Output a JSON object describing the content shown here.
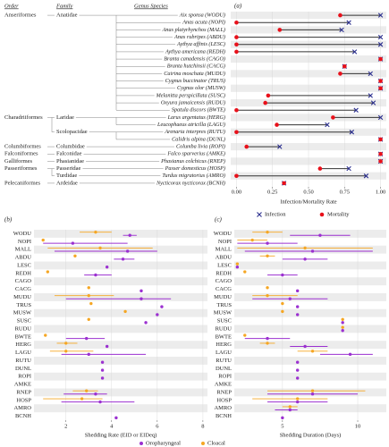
{
  "chart_data": [
    {
      "type": "dumbbell",
      "panel_label": "(a)",
      "headers": [
        "Order",
        "Family",
        "Genus Species"
      ],
      "categories": [
        "Aix sponsa (WODU)",
        "Anas acuta (NOPI)",
        "Anas platyrhynchos (MALL)",
        "Anas rubripes (ABDU)",
        "Aythya affinis (LESC)",
        "Aythya americana (REDH)",
        "Branta canadensis (CAGO)",
        "Branta hutchinsii (CACG)",
        "Cairina moschata (MUDU)",
        "Cygnus buccinator (TRUS)",
        "Cygnus olor (MUSW)",
        "Melanitta perspicillata (SUSC)",
        "Oxyura jamaicensis (RUDU)",
        "Spatula discors (BWTE)",
        "Larus argentatus (HERG)",
        "Leucophaeus atricilla (LAGU)",
        "Arenaria interpres (RUTU)",
        "Calidris alpina (DUNL)",
        "Columba livia (ROPI)",
        "Falco sparverius (AMKE)",
        "Phasianus colchicus (RNEP)",
        "Passer domesticus (HOSP)",
        "Turdus migratorius (AMRO)",
        "Nycticorax nycticorax (BCNH)"
      ],
      "orders": [
        "Anseriformes",
        null,
        null,
        null,
        null,
        null,
        null,
        null,
        null,
        null,
        null,
        null,
        null,
        null,
        "Charadriiformes",
        null,
        null,
        null,
        "Columbiformes",
        "Falconiformes",
        "Galliformes",
        "Passeriformes",
        null,
        "Pelecaniformes"
      ],
      "families": [
        "Anatidae",
        null,
        null,
        null,
        null,
        null,
        null,
        null,
        null,
        null,
        null,
        null,
        null,
        null,
        "Laridae",
        null,
        "Scolopacidae",
        null,
        "Columbidae",
        "Falconidae",
        "Phasianidae",
        "Passeridae",
        "Turdidae",
        "Ardeidae"
      ],
      "series": [
        {
          "name": "Infection",
          "color": "#2b2f8f",
          "marker": "x",
          "values": [
            1.0,
            0.78,
            0.73,
            1.0,
            1.0,
            0.82,
            1.0,
            0.75,
            0.93,
            1.0,
            1.0,
            0.93,
            0.95,
            0.83,
            1.0,
            0.63,
            0.8,
            1.0,
            0.3,
            1.0,
            1.0,
            0.78,
            0.9,
            0.33
          ]
        },
        {
          "name": "Mortality",
          "color": "#e8101a",
          "marker": "dot",
          "values": [
            0.72,
            0.0,
            0.3,
            0.0,
            0.0,
            0.0,
            1.0,
            0.75,
            0.72,
            1.0,
            1.0,
            0.22,
            0.2,
            0.0,
            0.67,
            0.28,
            0.0,
            1.0,
            0.07,
            1.0,
            1.0,
            0.58,
            0.0,
            0.33
          ]
        }
      ],
      "xlim": [
        -0.04,
        1.04
      ],
      "xticks": [
        {
          "value": 0,
          "label": "0.00"
        },
        {
          "value": 0.25,
          "label": "0.25"
        },
        {
          "value": 0.5,
          "label": "0.50"
        },
        {
          "value": 0.75,
          "label": "0.75"
        },
        {
          "value": 1,
          "label": "1.00"
        }
      ],
      "xlabel": "Infection/Mortality Rate",
      "legend": "bottom"
    },
    {
      "type": "errorbar_dot",
      "panel_label": "(b)",
      "categories": [
        "WODU",
        "NOPI",
        "MALL",
        "ABDU",
        "LESC",
        "REDH",
        "CAGO",
        "CACG",
        "MUDU",
        "TRUS",
        "MUSW",
        "SUSC",
        "RUDU",
        "BWTE",
        "HERG",
        "LAGU",
        "RUTU",
        "DUNL",
        "ROPI",
        "AMKE",
        "RNEP",
        "HOSP",
        "AMRO",
        "BCNH"
      ],
      "series": [
        {
          "name": "Oropharyngeal",
          "color": "#9b30d0",
          "values": [
            4.8,
            2.3,
            4.7,
            4.5,
            3.8,
            3.3,
            null,
            5.3,
            5.3,
            6.2,
            6.0,
            5.5,
            null,
            2.9,
            3.8,
            3.0,
            3.6,
            3.6,
            3.6,
            null,
            3.3,
            3.5,
            null,
            4.2
          ],
          "lower": [
            4.5,
            1.0,
            1.5,
            4.1,
            null,
            2.8,
            null,
            null,
            2.0,
            null,
            null,
            null,
            null,
            2.0,
            null,
            1.8,
            null,
            null,
            null,
            null,
            1.9,
            1.8,
            null,
            null
          ],
          "upper": [
            5.1,
            4.7,
            6.0,
            5.0,
            null,
            4.0,
            null,
            null,
            6.6,
            null,
            null,
            null,
            null,
            3.7,
            null,
            5.5,
            null,
            null,
            null,
            null,
            3.8,
            5.0,
            null,
            null
          ]
        },
        {
          "name": "Cloacal",
          "color": "#f5a623",
          "values": [
            3.3,
            1.0,
            3.5,
            2.4,
            null,
            1.2,
            null,
            3.0,
            3.0,
            3.1,
            4.6,
            3.0,
            null,
            1.1,
            2.0,
            2.0,
            null,
            null,
            null,
            null,
            2.9,
            2.7,
            null,
            null
          ],
          "lower": [
            2.6,
            null,
            1.2,
            null,
            null,
            null,
            null,
            null,
            1.5,
            null,
            null,
            null,
            null,
            null,
            1.6,
            1.3,
            null,
            null,
            null,
            null,
            2.3,
            1.0,
            null,
            null
          ],
          "upper": [
            4.0,
            null,
            5.8,
            null,
            null,
            null,
            null,
            null,
            4.1,
            null,
            null,
            null,
            null,
            null,
            2.5,
            3.2,
            null,
            null,
            null,
            null,
            3.4,
            3.6,
            null,
            null
          ]
        }
      ],
      "xlim": [
        0.6,
        8.2
      ],
      "xticks": [
        2,
        4,
        6,
        8
      ],
      "xlabel": "Shedding Rate (EID or EIDeq)",
      "legend": "bottom"
    },
    {
      "type": "errorbar_dot",
      "panel_label": "(c)",
      "categories": [
        "WODU",
        "NOPI",
        "MALL",
        "ABDU",
        "LESC",
        "REDH",
        "CAGO",
        "CACG",
        "MUDU",
        "TRUS",
        "MUSW",
        "SUSC",
        "RUDU",
        "BWTE",
        "HERG",
        "LAGU",
        "RUTU",
        "DUNL",
        "ROPI",
        "AMKE",
        "RNEP",
        "HOSP",
        "AMRO",
        "BCNH"
      ],
      "series": [
        {
          "color": "#9b30d0",
          "values": [
            7.5,
            4.0,
            7.0,
            6.5,
            2.0,
            5.0,
            null,
            6.0,
            5.5,
            6.0,
            6.0,
            9.0,
            9.0,
            4.0,
            6.5,
            9.5,
            6.0,
            6.0,
            6.0,
            null,
            7.0,
            6.0,
            5.5,
            5.0
          ],
          "lower": [
            5.5,
            2.0,
            2.5,
            5.0,
            null,
            4.0,
            null,
            null,
            3.0,
            null,
            null,
            null,
            null,
            2.5,
            5.5,
            7.5,
            null,
            null,
            null,
            null,
            4.0,
            4.0,
            4.5,
            null
          ],
          "upper": [
            9.5,
            6.0,
            11.0,
            8.0,
            null,
            6.0,
            null,
            null,
            8.0,
            null,
            null,
            null,
            null,
            5.5,
            8.0,
            11.0,
            null,
            null,
            null,
            null,
            10.0,
            8.0,
            6.0,
            null
          ]
        },
        {
          "color": "#f5a623",
          "values": [
            4.0,
            3.0,
            6.5,
            4.0,
            2.0,
            2.5,
            null,
            4.0,
            4.0,
            5.0,
            5.0,
            9.0,
            9.0,
            2.5,
            4.0,
            7.0,
            null,
            null,
            null,
            null,
            7.0,
            6.0,
            5.5,
            null
          ],
          "lower": [
            3.0,
            2.0,
            2.0,
            3.5,
            null,
            null,
            null,
            null,
            3.0,
            null,
            null,
            null,
            null,
            null,
            3.5,
            6.0,
            null,
            null,
            null,
            null,
            4.0,
            3.0,
            5.0,
            null
          ],
          "upper": [
            5.0,
            4.0,
            11.0,
            4.5,
            null,
            null,
            null,
            null,
            6.0,
            null,
            null,
            null,
            null,
            null,
            4.5,
            8.0,
            null,
            null,
            null,
            null,
            10.5,
            8.0,
            6.0,
            null
          ]
        }
      ],
      "xlim": [
        1.8,
        11.9
      ],
      "xticks": [
        5,
        10
      ],
      "xlabel": "Shedding Duration (Days)"
    }
  ]
}
